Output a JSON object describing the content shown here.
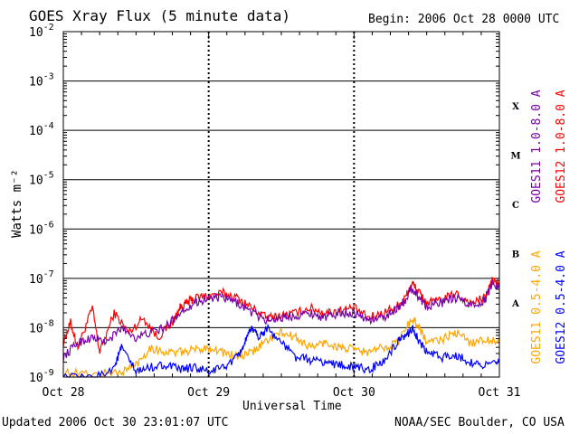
{
  "header": {
    "title": "GOES Xray Flux (5 minute data)",
    "begin": "Begin:  2006 Oct 28 0000 UTC"
  },
  "footer": {
    "updated": "Updated 2006 Oct 30 23:01:07 UTC",
    "credit": "NOAA/SEC Boulder, CO USA"
  },
  "chart_data": {
    "type": "line",
    "title": "GOES Xray Flux (5 minute data)",
    "xlabel": "Universal Time",
    "ylabel": "Watts m⁻²",
    "y_scale": "log",
    "ylim": [
      1e-09,
      0.01
    ],
    "y_ticks": [
      {
        "base": "10",
        "exp": "-9"
      },
      {
        "base": "10",
        "exp": "-8"
      },
      {
        "base": "10",
        "exp": "-7"
      },
      {
        "base": "10",
        "exp": "-6"
      },
      {
        "base": "10",
        "exp": "-5"
      },
      {
        "base": "10",
        "exp": "-4"
      },
      {
        "base": "10",
        "exp": "-3"
      },
      {
        "base": "10",
        "exp": "-2"
      }
    ],
    "x_ticks": [
      "Oct 28",
      "Oct 29",
      "Oct 30",
      "Oct 31"
    ],
    "x_range_days": [
      0,
      3
    ],
    "flare_classes": [
      {
        "label": "A",
        "low": -8,
        "high": -7
      },
      {
        "label": "B",
        "low": -7,
        "high": -6
      },
      {
        "label": "C",
        "low": -6,
        "high": -5
      },
      {
        "label": "M",
        "low": -5,
        "high": -4
      },
      {
        "label": "X",
        "low": -4,
        "high": -3
      }
    ],
    "grid": true,
    "legend_position": "right",
    "series": [
      {
        "name": "GOES12 1.0-8.0 A",
        "color": "#ff0000",
        "points": [
          [
            0,
            -8.3
          ],
          [
            0.05,
            -7.9
          ],
          [
            0.1,
            -8.4
          ],
          [
            0.2,
            -7.6
          ],
          [
            0.25,
            -8.5
          ],
          [
            0.35,
            -7.7
          ],
          [
            0.45,
            -8.1
          ],
          [
            0.55,
            -7.8
          ],
          [
            0.65,
            -8.2
          ],
          [
            0.75,
            -7.9
          ],
          [
            0.8,
            -7.6
          ],
          [
            0.85,
            -7.5
          ],
          [
            0.9,
            -7.4
          ],
          [
            1.0,
            -7.35
          ],
          [
            1.1,
            -7.3
          ],
          [
            1.2,
            -7.4
          ],
          [
            1.3,
            -7.6
          ],
          [
            1.4,
            -7.8
          ],
          [
            1.5,
            -7.75
          ],
          [
            1.6,
            -7.7
          ],
          [
            1.7,
            -7.6
          ],
          [
            1.8,
            -7.7
          ],
          [
            1.9,
            -7.65
          ],
          [
            2.0,
            -7.6
          ],
          [
            2.1,
            -7.8
          ],
          [
            2.2,
            -7.7
          ],
          [
            2.3,
            -7.55
          ],
          [
            2.35,
            -7.4
          ],
          [
            2.4,
            -7.1
          ],
          [
            2.45,
            -7.3
          ],
          [
            2.5,
            -7.5
          ],
          [
            2.6,
            -7.45
          ],
          [
            2.7,
            -7.3
          ],
          [
            2.8,
            -7.5
          ],
          [
            2.9,
            -7.4
          ],
          [
            2.95,
            -7.05
          ],
          [
            3.0,
            -7.1
          ]
        ]
      },
      {
        "name": "GOES11 1.0-8.0 A",
        "color": "#7700aa",
        "points": [
          [
            0,
            -8.6
          ],
          [
            0.1,
            -8.3
          ],
          [
            0.2,
            -8.2
          ],
          [
            0.3,
            -8.3
          ],
          [
            0.4,
            -8.0
          ],
          [
            0.5,
            -8.2
          ],
          [
            0.6,
            -8.1
          ],
          [
            0.7,
            -8.0
          ],
          [
            0.8,
            -7.7
          ],
          [
            0.9,
            -7.5
          ],
          [
            1.0,
            -7.4
          ],
          [
            1.1,
            -7.4
          ],
          [
            1.2,
            -7.5
          ],
          [
            1.3,
            -7.7
          ],
          [
            1.4,
            -7.85
          ],
          [
            1.5,
            -7.8
          ],
          [
            1.6,
            -7.75
          ],
          [
            1.7,
            -7.7
          ],
          [
            1.8,
            -7.8
          ],
          [
            1.9,
            -7.7
          ],
          [
            2.0,
            -7.7
          ],
          [
            2.1,
            -7.85
          ],
          [
            2.2,
            -7.8
          ],
          [
            2.3,
            -7.6
          ],
          [
            2.35,
            -7.45
          ],
          [
            2.4,
            -7.2
          ],
          [
            2.45,
            -7.4
          ],
          [
            2.5,
            -7.55
          ],
          [
            2.6,
            -7.5
          ],
          [
            2.7,
            -7.4
          ],
          [
            2.8,
            -7.55
          ],
          [
            2.9,
            -7.45
          ],
          [
            2.95,
            -7.1
          ],
          [
            3.0,
            -7.15
          ]
        ]
      },
      {
        "name": "GOES11 0.5-4.0 A",
        "color": "#ffa500",
        "points": [
          [
            0,
            -8.9
          ],
          [
            0.2,
            -8.95
          ],
          [
            0.4,
            -8.9
          ],
          [
            0.5,
            -8.75
          ],
          [
            0.6,
            -8.4
          ],
          [
            0.7,
            -8.5
          ],
          [
            0.8,
            -8.5
          ],
          [
            0.9,
            -8.45
          ],
          [
            1.0,
            -8.4
          ],
          [
            1.1,
            -8.5
          ],
          [
            1.2,
            -8.6
          ],
          [
            1.3,
            -8.5
          ],
          [
            1.4,
            -8.25
          ],
          [
            1.5,
            -8.1
          ],
          [
            1.6,
            -8.2
          ],
          [
            1.7,
            -8.4
          ],
          [
            1.8,
            -8.3
          ],
          [
            1.9,
            -8.4
          ],
          [
            2.0,
            -8.45
          ],
          [
            2.1,
            -8.5
          ],
          [
            2.2,
            -8.4
          ],
          [
            2.3,
            -8.3
          ],
          [
            2.4,
            -7.8
          ],
          [
            2.45,
            -8.0
          ],
          [
            2.5,
            -8.3
          ],
          [
            2.6,
            -8.25
          ],
          [
            2.7,
            -8.1
          ],
          [
            2.8,
            -8.3
          ],
          [
            2.9,
            -8.25
          ],
          [
            3.0,
            -8.25
          ]
        ]
      },
      {
        "name": "GOES12 0.5-4.0 A",
        "color": "#0000ff",
        "points": [
          [
            0,
            -9.0
          ],
          [
            0.2,
            -9.05
          ],
          [
            0.35,
            -8.8
          ],
          [
            0.4,
            -8.4
          ],
          [
            0.5,
            -8.9
          ],
          [
            0.6,
            -8.8
          ],
          [
            0.7,
            -8.75
          ],
          [
            0.8,
            -8.85
          ],
          [
            0.9,
            -8.8
          ],
          [
            1.0,
            -8.9
          ],
          [
            1.1,
            -8.8
          ],
          [
            1.2,
            -8.6
          ],
          [
            1.25,
            -8.3
          ],
          [
            1.3,
            -8.0
          ],
          [
            1.35,
            -8.2
          ],
          [
            1.4,
            -8.0
          ],
          [
            1.5,
            -8.3
          ],
          [
            1.6,
            -8.6
          ],
          [
            1.7,
            -8.65
          ],
          [
            1.8,
            -8.7
          ],
          [
            1.9,
            -8.75
          ],
          [
            2.0,
            -8.8
          ],
          [
            2.1,
            -8.85
          ],
          [
            2.2,
            -8.7
          ],
          [
            2.3,
            -8.3
          ],
          [
            2.35,
            -8.2
          ],
          [
            2.4,
            -8.0
          ],
          [
            2.45,
            -8.3
          ],
          [
            2.5,
            -8.5
          ],
          [
            2.6,
            -8.6
          ],
          [
            2.7,
            -8.55
          ],
          [
            2.8,
            -8.7
          ],
          [
            2.9,
            -8.75
          ],
          [
            3.0,
            -8.7
          ]
        ]
      }
    ]
  }
}
